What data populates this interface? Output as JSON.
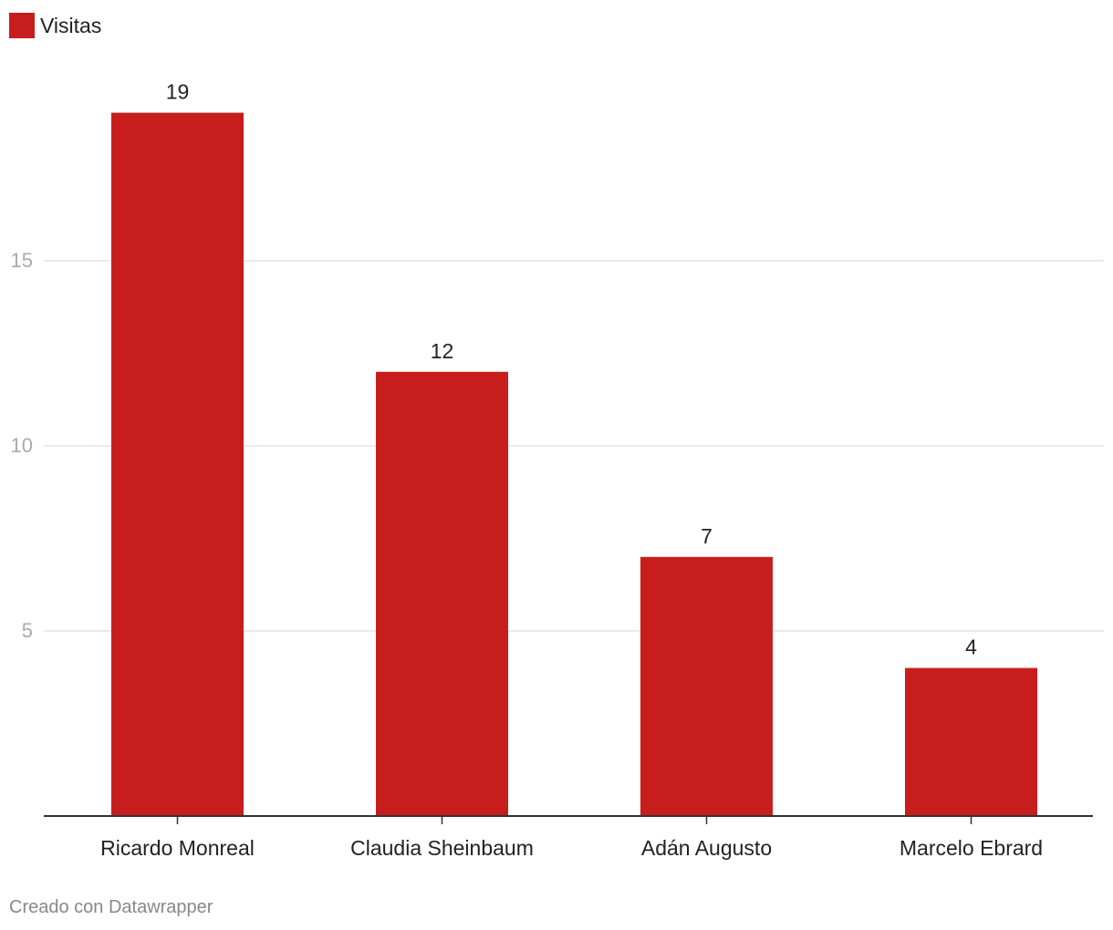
{
  "chart_data": {
    "type": "bar",
    "categories": [
      "Ricardo Monreal",
      "Claudia Sheinbaum",
      "Adán Augusto",
      "Marcelo Ebrard"
    ],
    "series": [
      {
        "name": "Visitas",
        "values": [
          19,
          12,
          7,
          4
        ],
        "color": "#c71e1d"
      }
    ],
    "data_labels": [
      "19",
      "12",
      "7",
      "4"
    ],
    "y_ticks": [
      5,
      10,
      15
    ],
    "ylim": [
      0,
      20
    ],
    "grid": true,
    "legend_position": "top-left"
  },
  "colors": {
    "bar": "#c71e1d",
    "grid": "#e4e4e4",
    "axis": "#333333",
    "tick_label": "#aaaaaa",
    "category_label": "#222222",
    "value_label": "#222222"
  },
  "footer": {
    "credit": "Creado con Datawrapper"
  }
}
